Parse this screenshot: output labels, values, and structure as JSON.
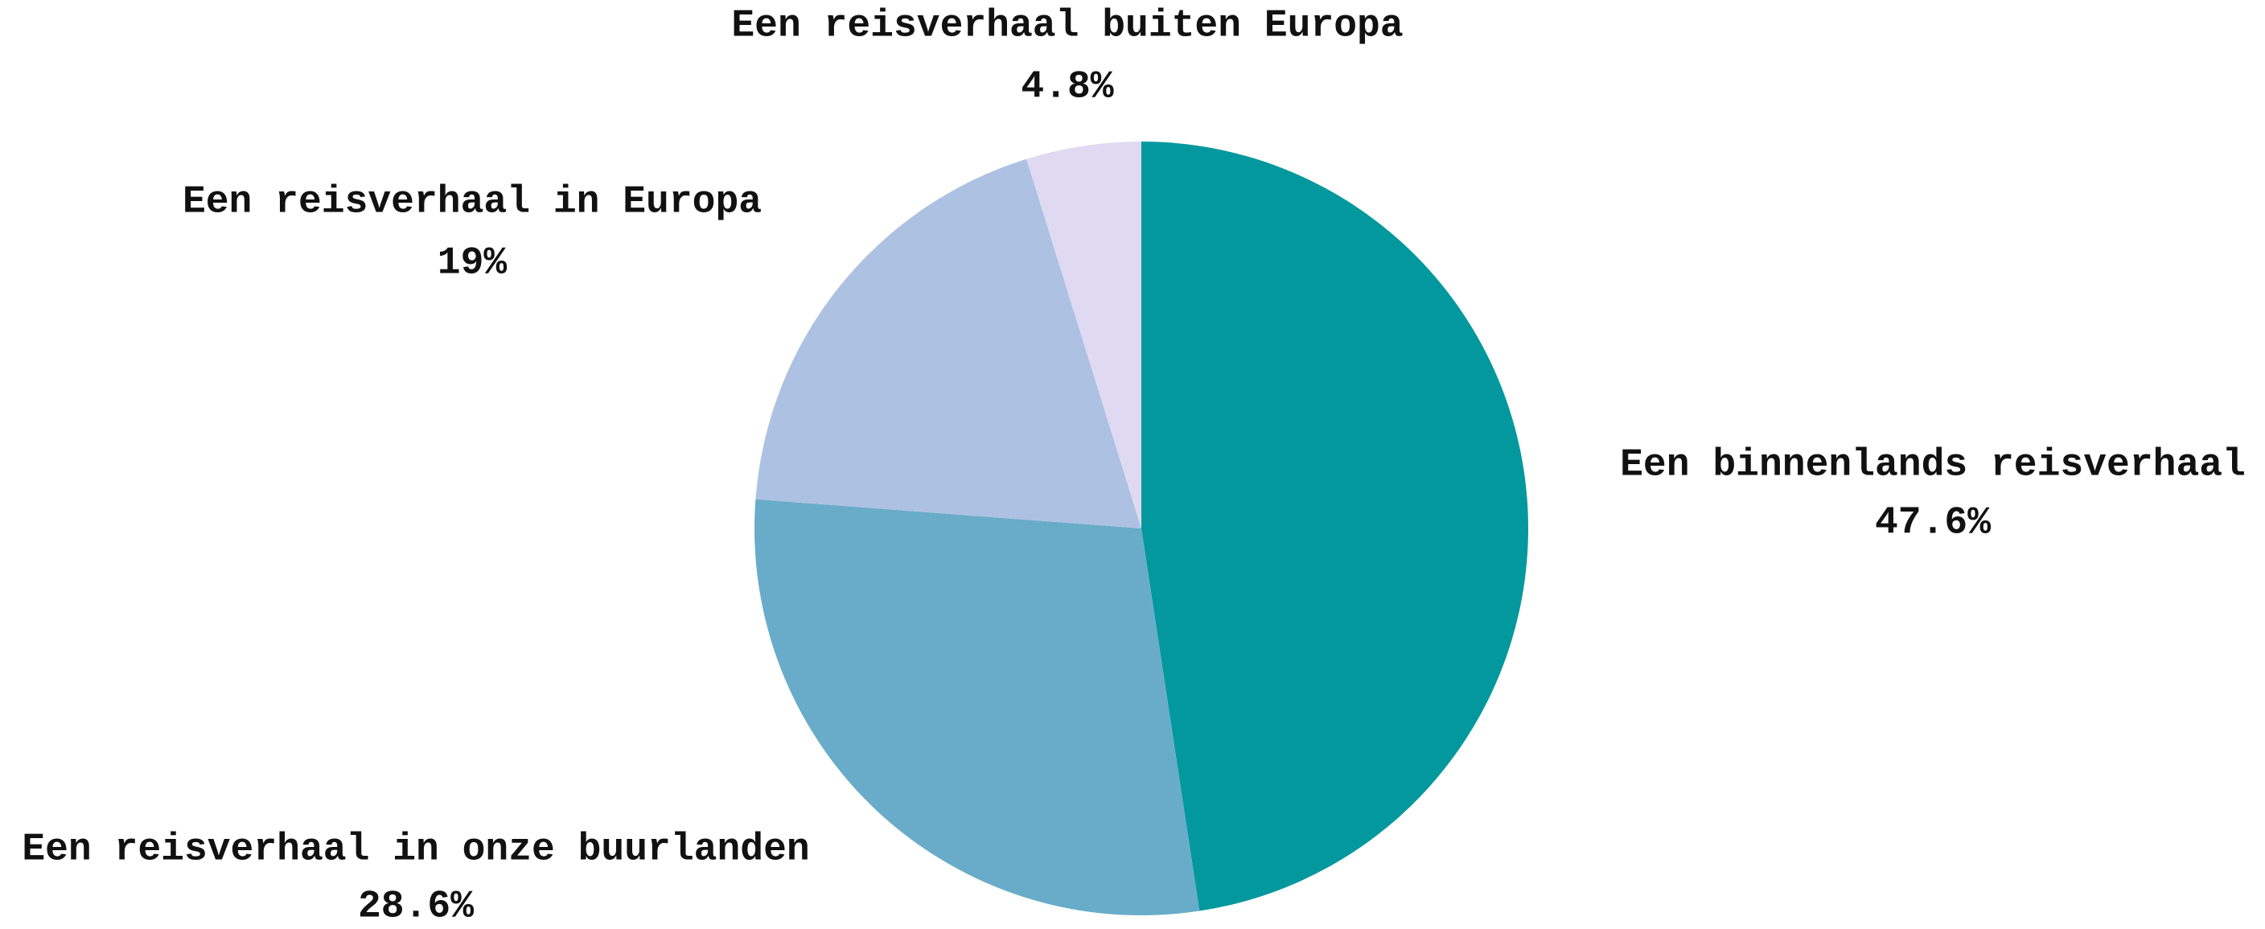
{
  "chart_data": {
    "type": "pie",
    "categories": [
      "Een binnenlands reisverhaal",
      "Een reisverhaal in onze buurlanden",
      "Een reisverhaal in Europa",
      "Een reisverhaal buiten Europa"
    ],
    "values": [
      47.6,
      28.6,
      19,
      4.8
    ],
    "value_labels": [
      "47.6%",
      "28.6%",
      "19%",
      "4.8%"
    ],
    "colors": [
      "#03989e",
      "#69acc9",
      "#adc1e3",
      "#dfdaf1"
    ]
  }
}
